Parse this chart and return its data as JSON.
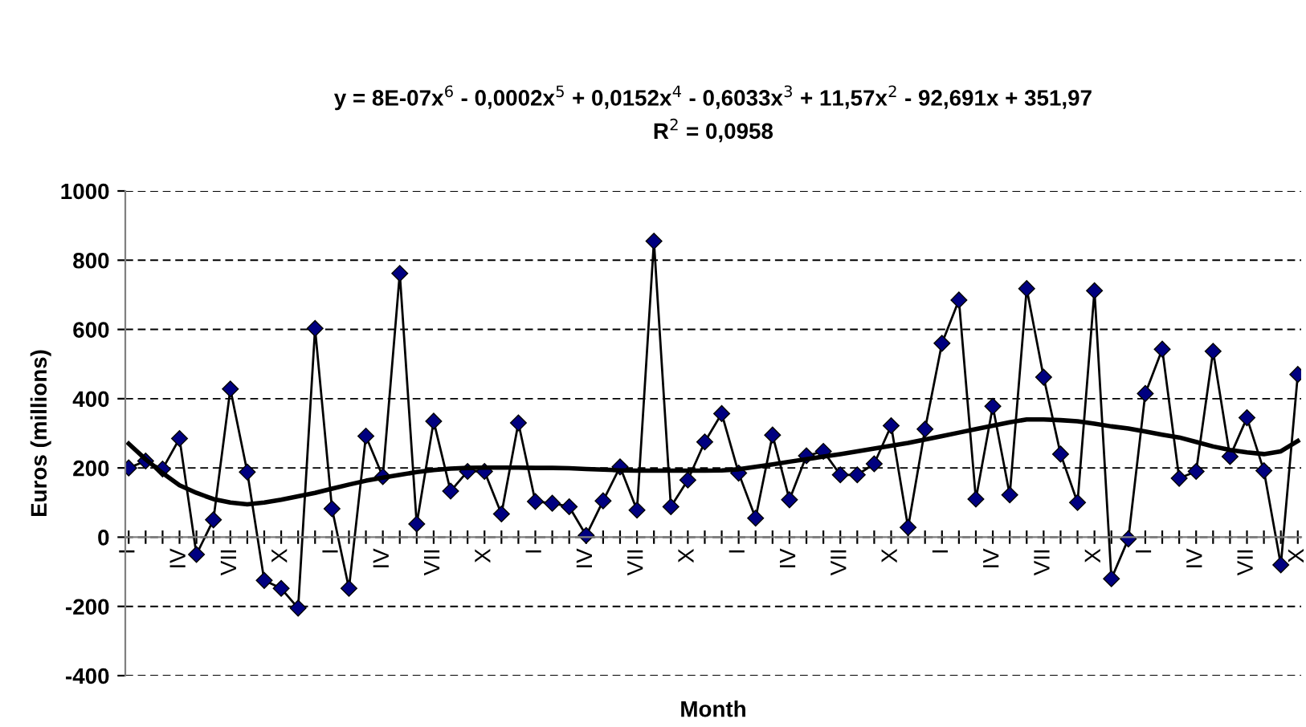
{
  "chart_data": {
    "type": "line",
    "title": "y = 8E-07x$^{6}$ - 0,0002x$^{5}$ + 0,0152x$^{4}$ - 0,6033x$^{3}$ + 11,57x$^{2}$ - 92,691x + 351,97",
    "subtitle": "R$^{2}$ = 0,0958",
    "xlabel": "Month",
    "ylabel": "Euros (millions)",
    "categories": [
      "I",
      null,
      null,
      "IV",
      null,
      null,
      "VII",
      null,
      null,
      "X",
      null,
      null,
      "I",
      null,
      null,
      "IV",
      null,
      null,
      "VII",
      null,
      null,
      "X",
      null,
      null,
      "I",
      null,
      null,
      "IV",
      null,
      null,
      "VII",
      null,
      null,
      "X",
      null,
      null,
      "I",
      null,
      null,
      "IV",
      null,
      null,
      "VII",
      null,
      null,
      "X",
      null,
      null,
      "I",
      null,
      null,
      "IV",
      null,
      null,
      "VII",
      null,
      null,
      "X",
      null,
      null,
      "I",
      null,
      null,
      "IV",
      null,
      null,
      "VII",
      null,
      null,
      "X"
    ],
    "series": [
      {
        "color": "#000080",
        "marker": "diamond",
        "values": [
          200,
          220,
          197,
          285,
          -50,
          50,
          428,
          188,
          -125,
          -148,
          -205,
          603,
          82,
          -148,
          292,
          175,
          762,
          38,
          335,
          133,
          190,
          190,
          67,
          330,
          103,
          98,
          88,
          5,
          105,
          203,
          78,
          855,
          88,
          165,
          275,
          357,
          185,
          55,
          295,
          108,
          235,
          248,
          180,
          180,
          212,
          322,
          28,
          312,
          560,
          685,
          110,
          378,
          122,
          718,
          462,
          240,
          100,
          712,
          -120,
          -5,
          415,
          543,
          170,
          190,
          537,
          233,
          345,
          192,
          -80,
          470
        ]
      },
      {
        "type": "line",
        "color": "#000000",
        "marker": "none",
        "values": [
          270,
          225,
          185,
          150,
          128,
          110,
          100,
          95,
          100,
          108,
          118,
          128,
          140,
          152,
          163,
          172,
          180,
          188,
          194,
          198,
          200,
          201,
          201,
          201,
          200,
          200,
          199,
          197,
          195,
          193,
          192,
          192,
          192,
          192,
          192,
          193,
          196,
          203,
          210,
          218,
          225,
          233,
          240,
          248,
          256,
          264,
          272,
          282,
          292,
          302,
          312,
          322,
          332,
          340,
          340,
          338,
          335,
          328,
          320,
          314,
          305,
          296,
          288,
          275,
          262,
          252,
          245,
          240,
          248,
          278
        ]
      }
    ],
    "ylim": [
      -400,
      1000
    ],
    "yticks": [
      -400,
      -200,
      0,
      200,
      400,
      600,
      800,
      1000
    ],
    "grid": "y",
    "legend": false
  }
}
